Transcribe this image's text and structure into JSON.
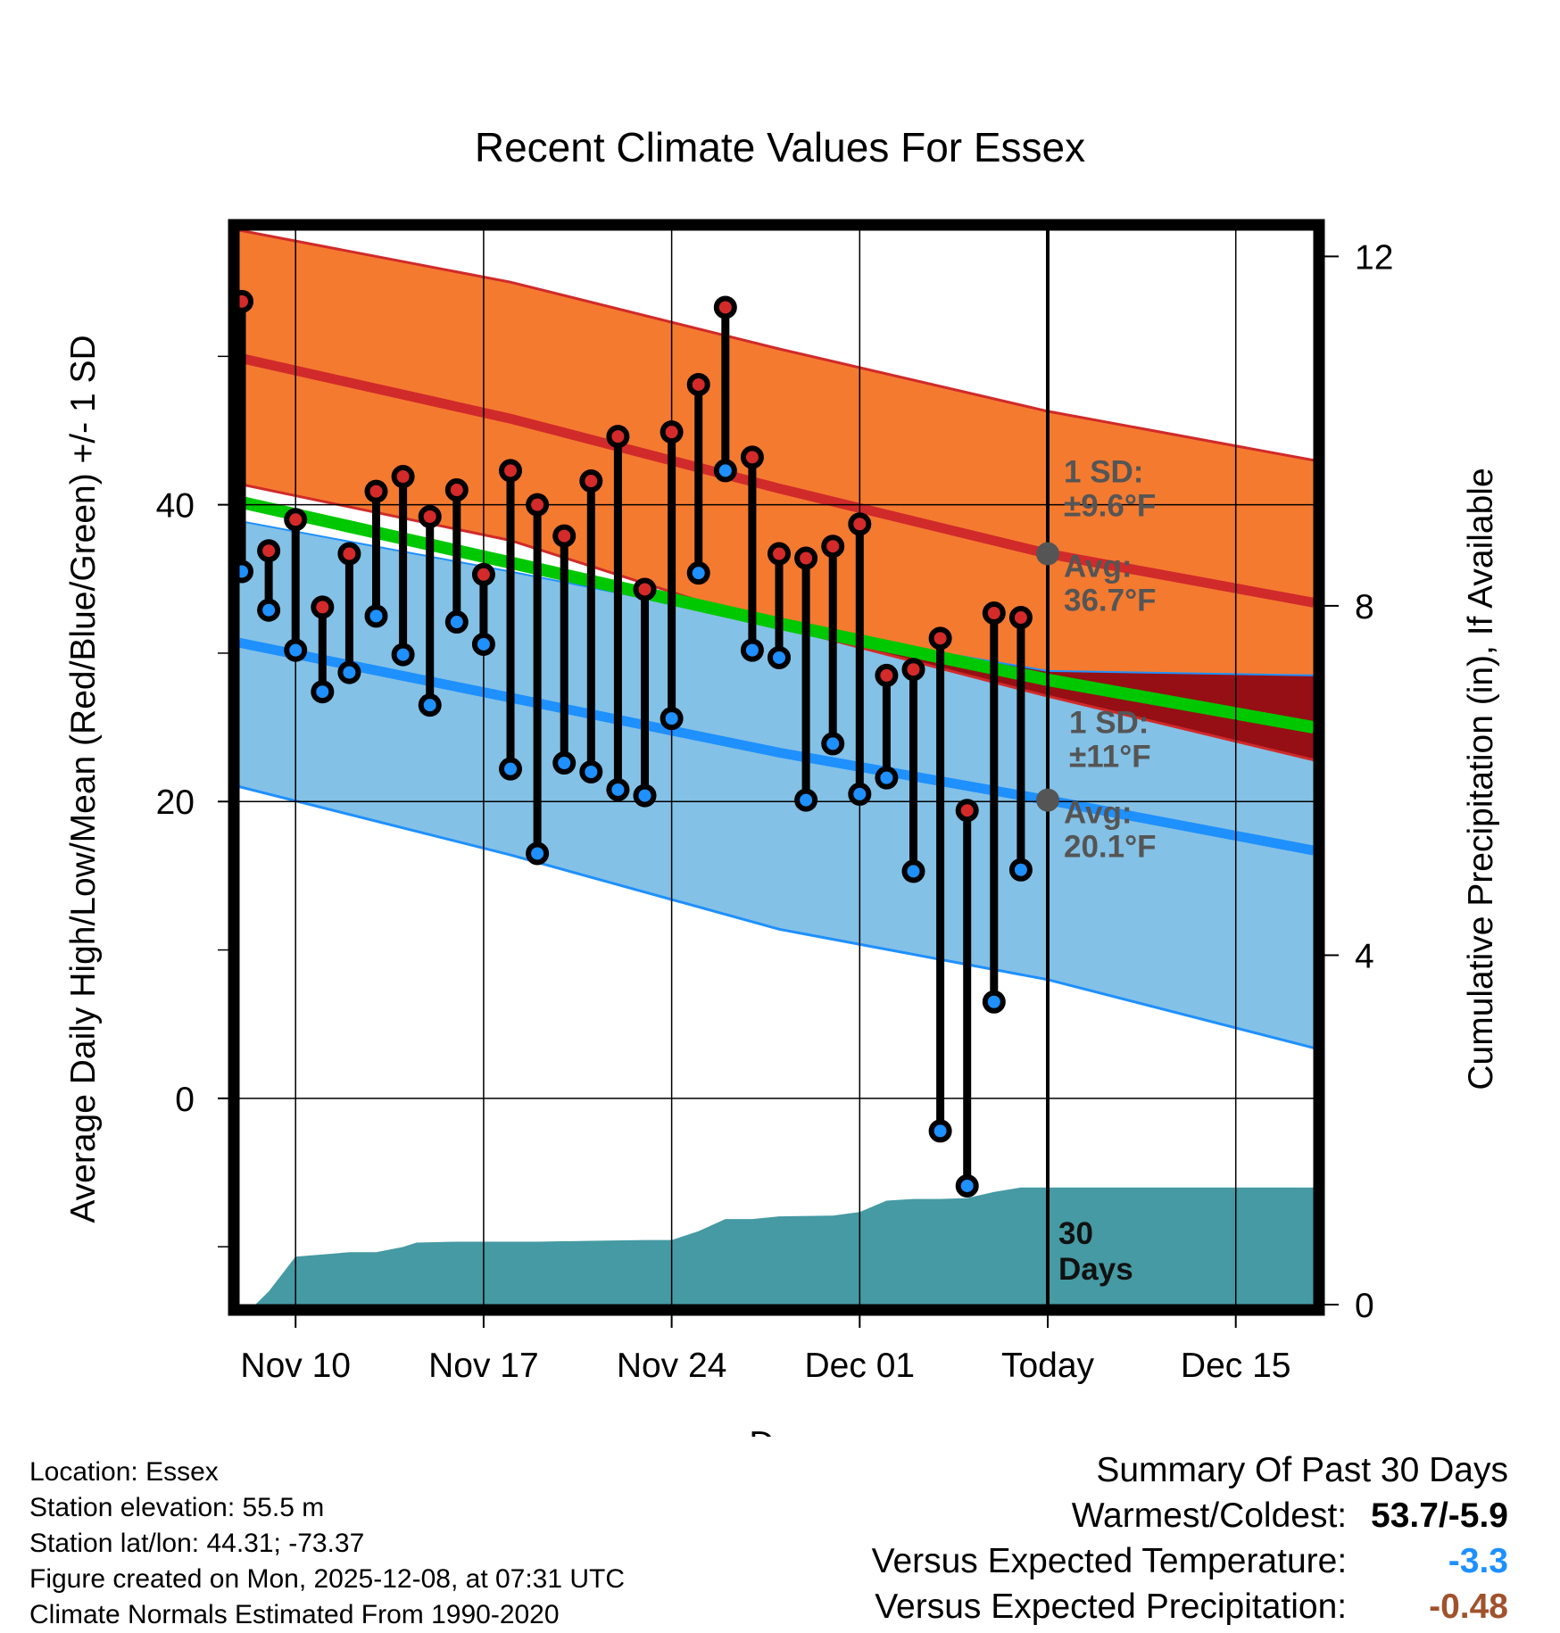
{
  "chart_data": {
    "type": "line",
    "title": "Recent Climate Values For Essex",
    "xlabel": "Day",
    "ylabel_left": "Average Daily High/Low/Mean (Red/Blue/Green) +/- 1 SD",
    "ylabel_right": "Cumulative Precipitation (in), If Available",
    "y_left_ticks": [
      0,
      20,
      40
    ],
    "y_right_ticks": [
      0,
      4,
      8,
      12
    ],
    "ylim_left": [
      -13.9,
      58.5
    ],
    "ylim_right": [
      0,
      12.3
    ],
    "x_range_days": [
      -30.1,
      9.9
    ],
    "x_ticks": [
      {
        "day": -28,
        "label": "Nov 10"
      },
      {
        "day": -21,
        "label": "Nov 17"
      },
      {
        "day": -14,
        "label": "Nov 24"
      },
      {
        "day": -7,
        "label": "Dec 01"
      },
      {
        "day": 0,
        "label": "Today"
      },
      {
        "day": 7,
        "label": "Dec 15"
      }
    ],
    "normals": {
      "days": [
        -30.1,
        -20,
        -10,
        0,
        9.9
      ],
      "high_mean": [
        49.9,
        45.8,
        41.1,
        36.7,
        33.4
      ],
      "high_upper": [
        58.5,
        55.0,
        50.5,
        46.3,
        43.0
      ],
      "high_lower": [
        41.4,
        37.6,
        31.8,
        27.1,
        22.8
      ],
      "low_mean": [
        30.7,
        27.0,
        23.3,
        20.1,
        16.7
      ],
      "low_upper": [
        38.9,
        35.5,
        31.9,
        28.8,
        28.5
      ],
      "low_lower": [
        21.0,
        16.4,
        11.4,
        8.0,
        3.4
      ],
      "mean_mean": [
        40.2,
        36.1,
        32.0,
        28.2,
        25.0
      ]
    },
    "series": [
      {
        "name": "Daily High",
        "color": "#d42a2a",
        "values": [
          53.7,
          36.9,
          39.0,
          33.1,
          36.7,
          40.9,
          41.9,
          39.2,
          41.0,
          35.3,
          42.3,
          40.0,
          37.9,
          41.6,
          44.6,
          34.3,
          44.9,
          48.1,
          53.3,
          43.2,
          36.7,
          36.4,
          37.2,
          38.7,
          28.5,
          28.9,
          31.0,
          19.4,
          32.7,
          32.4
        ]
      },
      {
        "name": "Daily Low",
        "color": "#1e90ff",
        "values": [
          35.5,
          32.9,
          30.2,
          27.4,
          28.7,
          32.5,
          29.9,
          26.5,
          32.1,
          30.6,
          22.2,
          16.5,
          22.6,
          22.0,
          20.8,
          20.4,
          25.6,
          35.4,
          42.3,
          30.2,
          29.7,
          20.1,
          23.9,
          20.5,
          21.6,
          15.3,
          -2.2,
          -5.9,
          6.5,
          15.4
        ]
      }
    ],
    "precipitation_cumulative": {
      "days": [
        -30,
        -29.5,
        -29,
        -28,
        -26,
        -25,
        -24,
        -23.5,
        -22,
        -19,
        -17,
        -15,
        -14,
        -13,
        -12,
        -11,
        -10,
        -8,
        -7.5,
        -7,
        -6,
        -5,
        -4,
        -3,
        -2,
        -1,
        0,
        9.9
      ],
      "values": [
        0,
        0,
        0.15,
        0.55,
        0.6,
        0.6,
        0.66,
        0.71,
        0.72,
        0.72,
        0.73,
        0.74,
        0.74,
        0.84,
        0.98,
        0.98,
        1.01,
        1.02,
        1.04,
        1.06,
        1.19,
        1.21,
        1.21,
        1.22,
        1.29,
        1.34,
        1.34,
        1.34
      ]
    },
    "annotations": {
      "high_sd": "1 SD:\n±9.6°F",
      "high_avg": "Avg:\n36.7°F",
      "high_avg_value": 36.7,
      "low_sd": "1 SD:\n±11°F",
      "low_avg": "Avg:\n20.1°F",
      "low_avg_value": 20.1,
      "precip_days": "30\nDays"
    },
    "colors": {
      "high_band": "#f47a30",
      "high_line": "#d12a2a",
      "low_band": "#84c1e6",
      "low_line": "#1e90ff",
      "mean_line": "#00c800",
      "overlap": "#960f14",
      "precip": "#459aa3",
      "avg_marker": "#555555"
    }
  },
  "footer": {
    "location": "Location: Essex",
    "elevation": "Station elevation: 55.5 m",
    "latlon": "Station lat/lon: 44.31; -73.37",
    "created": "Figure created on Mon, 2025-12-08, at 07:31 UTC",
    "normals": "Climate Normals Estimated From 1990-2020"
  },
  "summary": {
    "title": "Summary Of Past 30 Days",
    "warmest_label": "Warmest/Coldest:",
    "warmest_value": "53.7/-5.9",
    "temp_label": "Versus Expected Temperature:",
    "temp_value": "-3.3",
    "temp_color": "#1e90ff",
    "precip_label": "Versus Expected Precipitation:",
    "precip_value": "-0.48",
    "precip_color": "#a0522d"
  }
}
